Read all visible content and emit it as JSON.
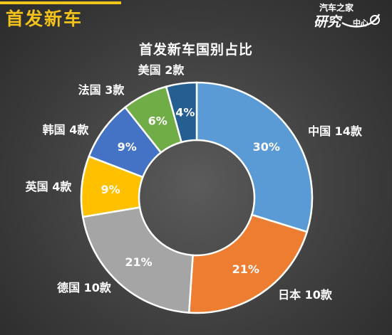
{
  "header": {
    "title": "首发新车",
    "logo_line1": "汽车之家",
    "logo_line2": "研究",
    "logo_line3": "中心"
  },
  "chart_data": {
    "type": "pie",
    "title": "首发新车国别占比",
    "inner_radius_ratio": 0.5,
    "slices": [
      {
        "label": "中国 14款",
        "value": 14,
        "percent_label": "30%",
        "color": "#5b9bd5"
      },
      {
        "label": "日本 10款",
        "value": 10,
        "percent_label": "21%",
        "color": "#ed7d31"
      },
      {
        "label": "德国 10款",
        "value": 10,
        "percent_label": "21%",
        "color": "#a5a5a5"
      },
      {
        "label": "英国 4款",
        "value": 4,
        "percent_label": "9%",
        "color": "#ffc000"
      },
      {
        "label": "韩国 4款",
        "value": 4,
        "percent_label": "9%",
        "color": "#4472c4"
      },
      {
        "label": "法国 3款",
        "value": 3,
        "percent_label": "6%",
        "color": "#70ad47"
      },
      {
        "label": "美国 2款",
        "value": 2,
        "percent_label": "4%",
        "color": "#255e91"
      }
    ]
  }
}
